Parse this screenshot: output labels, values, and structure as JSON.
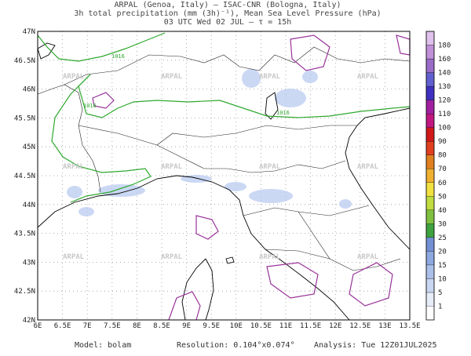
{
  "header": {
    "line1": "ARPAL (Genoa, Italy)  –  ISAC-CNR (Bologna, Italy)",
    "line2": "3h total precipitation (mm (3h)⁻¹), Mean Sea Level Pressure (hPa)",
    "line3": "03 UTC Wed 02 JUL  –  τ = 15h"
  },
  "map": {
    "lat_labels": [
      "47N",
      "46.5N",
      "46N",
      "45.5N",
      "45N",
      "44.5N",
      "44N",
      "43.5N",
      "43N",
      "42.5N",
      "42N"
    ],
    "lon_labels": [
      "6E",
      "6.5E",
      "7E",
      "7.5E",
      "8E",
      "8.5E",
      "9E",
      "9.5E",
      "10E",
      "10.5E",
      "11E",
      "11.5E",
      "12E",
      "12.5E",
      "13E",
      "13.5E"
    ],
    "contour_label": "1016",
    "watermark": "ARPAL"
  },
  "colorbar": {
    "levels": [
      1,
      5,
      10,
      15,
      20,
      25,
      30,
      40,
      50,
      60,
      70,
      80,
      90,
      100,
      110,
      120,
      130,
      140,
      160,
      180
    ],
    "colors": [
      "#e6ecf8",
      "#c9d6f1",
      "#abc0e9",
      "#8ea9e0",
      "#7390d4",
      "#3fa33f",
      "#80c040",
      "#c0dc40",
      "#f0e040",
      "#f0b030",
      "#e08020",
      "#e04020",
      "#d01818",
      "#c01880",
      "#a020a0",
      "#4030c0",
      "#6060d0",
      "#9a6cc8",
      "#c090d8",
      "#e0c0ec"
    ]
  },
  "footer": {
    "model": "Model: bolam",
    "resolution": "Resolution: 0.104°x0.074°",
    "analysis": "Analysis: Tue 12Z01JUL2025"
  }
}
